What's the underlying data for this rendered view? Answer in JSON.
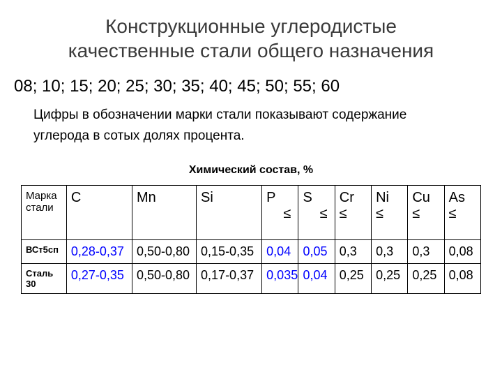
{
  "title_line1": "Конструкционные углеродистые",
  "title_line2": "качественные стали общего назначения",
  "grades_text": "08; 10; 15; 20; 25; 30; 35; 40; 45; 50; 55; 60",
  "note_line1": "Цифры в обозначении марки стали показывают содержание",
  "note_line2": "углерода в сотых долях процента.",
  "table_caption": "Химический состав, %",
  "columns": {
    "mark_line1": "Марка",
    "mark_line2": "стали",
    "c": "С",
    "mn": "Mn",
    "si": "Si",
    "p": "P",
    "s": "S",
    "cr": "Cr",
    "ni": "Ni",
    "cu": "Cu",
    "as": "As",
    "le": "≤"
  },
  "rows": [
    {
      "mark": "ВСт5сп",
      "c": "0,28-0,37",
      "mn": "0,50-0,80",
      "si": "0,15-0,35",
      "p": "0,04",
      "s": "0,05",
      "cr": "0,3",
      "ni": "0,3",
      "cu": "0,3",
      "as": "0,08"
    },
    {
      "mark": "Сталь 30",
      "c": "0,27-0,35",
      "mn": "0,50-0,80",
      "si": "0,17-0,37",
      "p": "0,035",
      "s": "0,04",
      "cr": "0,25",
      "ni": "0,25",
      "cu": "0,25",
      "as": "0,08"
    }
  ],
  "colors": {
    "title": "#3a3a3a",
    "text": "#000000",
    "highlight": "#0000ff",
    "border": "#000000",
    "bg": "#ffffff"
  }
}
